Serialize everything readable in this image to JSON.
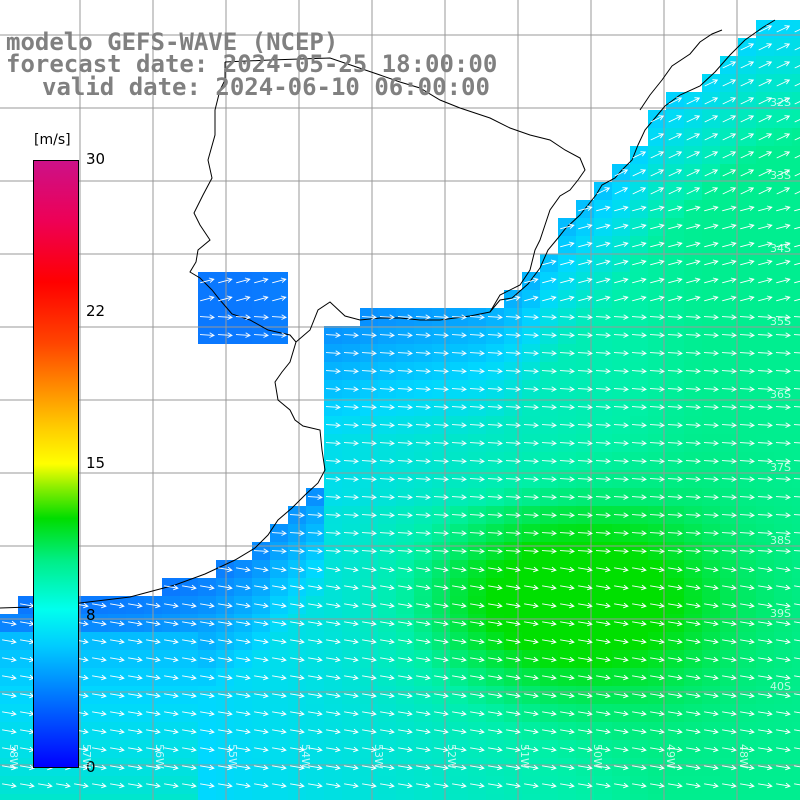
{
  "title": {
    "model": "modelo GEFS-WAVE (NCEP)",
    "forecast": "forecast date: 2024-05-25 18:00:00",
    "valid": "valid date: 2024-06-10 06:00:00"
  },
  "colorbar": {
    "unit": "[m/s]",
    "ticks": [
      "30",
      "22",
      "15",
      "8",
      "0"
    ],
    "colors": [
      "#0000ff",
      "#00ccff",
      "#00ffee",
      "#00dd00",
      "#ffff00",
      "#ff8800",
      "#ff0000",
      "#cc1188"
    ]
  },
  "map": {
    "lat_labels": [
      "32S",
      "33S",
      "34S",
      "35S",
      "36S",
      "37S",
      "38S",
      "39S",
      "40S"
    ],
    "lon_labels": [
      "58W",
      "57W",
      "56W",
      "55W",
      "54W",
      "53W",
      "52W",
      "51W",
      "50W",
      "49W",
      "48W"
    ],
    "land_color": "#ffffff",
    "grid_color": "#999999",
    "coast_color": "#000000"
  }
}
